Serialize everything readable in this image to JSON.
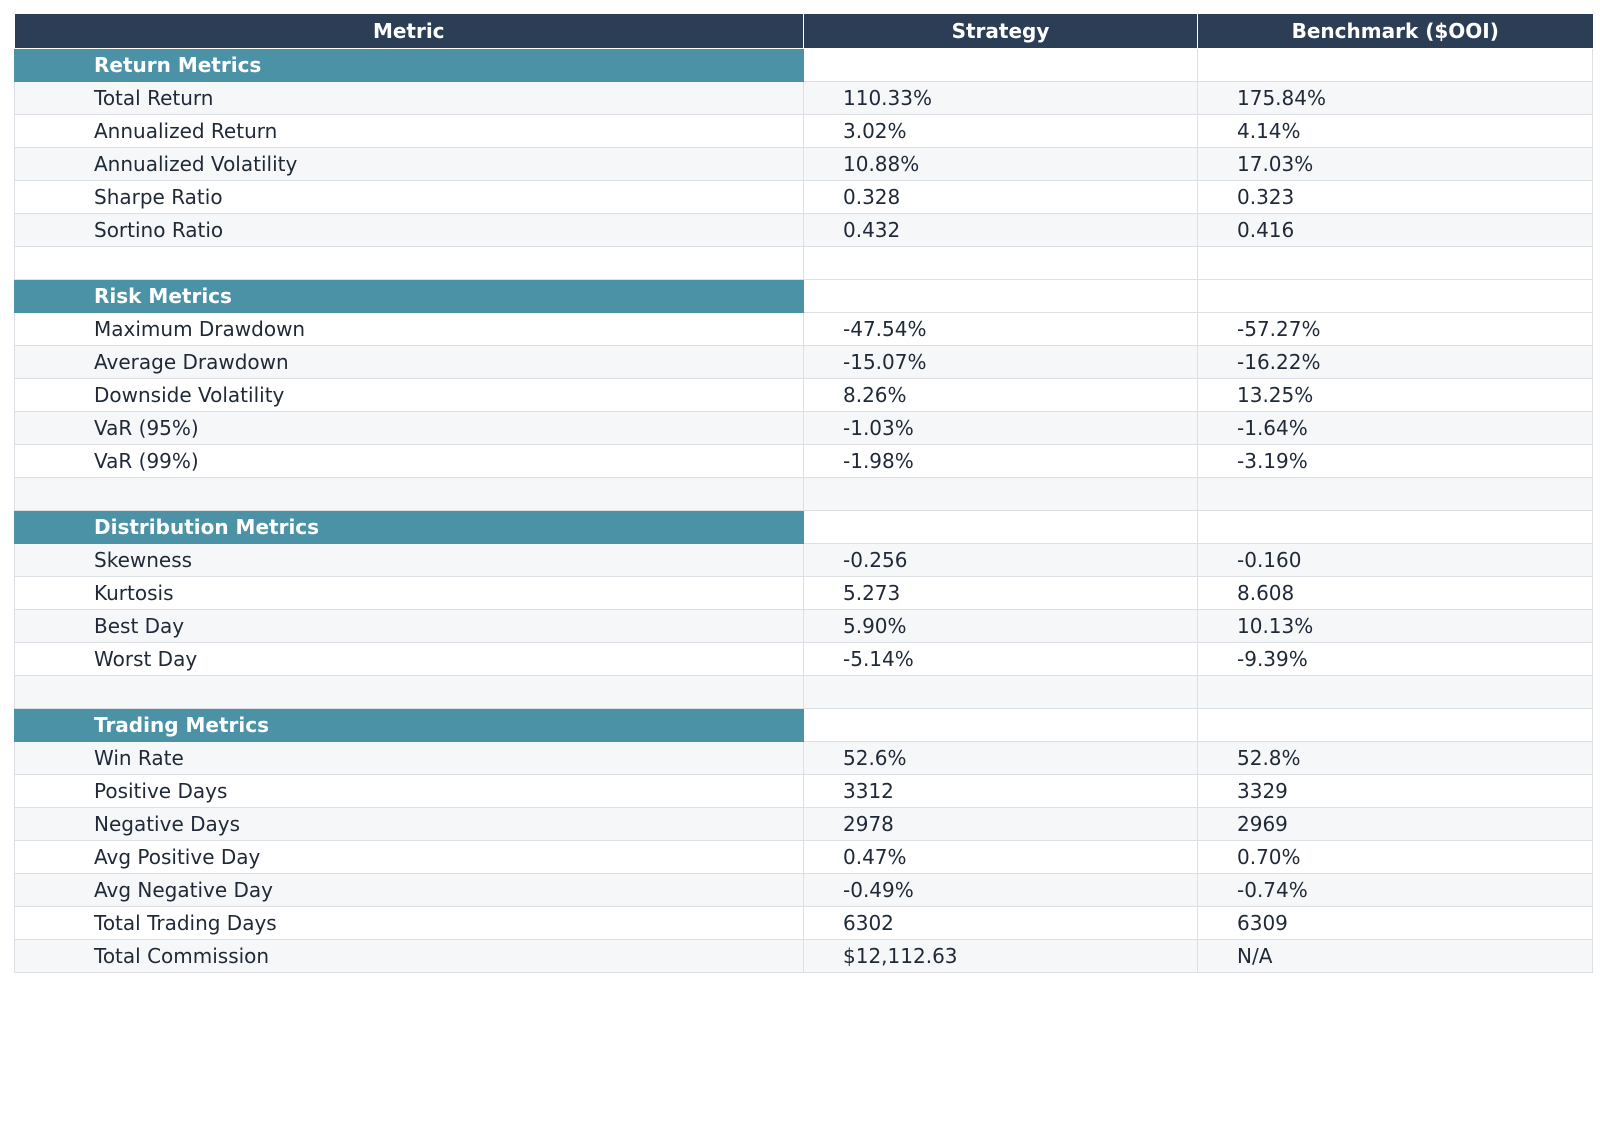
{
  "chart_data": {
    "type": "table",
    "columns": [
      "Metric",
      "Strategy",
      "Benchmark ($OOI)"
    ],
    "rows": [
      {
        "kind": "section",
        "label": "Return Metrics"
      },
      {
        "kind": "data",
        "metric": "Total Return",
        "strategy": "110.33%",
        "benchmark": "175.84%"
      },
      {
        "kind": "data",
        "metric": "Annualized Return",
        "strategy": "3.02%",
        "benchmark": "4.14%"
      },
      {
        "kind": "data",
        "metric": "Annualized Volatility",
        "strategy": "10.88%",
        "benchmark": "17.03%"
      },
      {
        "kind": "data",
        "metric": "Sharpe Ratio",
        "strategy": "0.328",
        "benchmark": "0.323"
      },
      {
        "kind": "data",
        "metric": "Sortino Ratio",
        "strategy": "0.432",
        "benchmark": "0.416"
      },
      {
        "kind": "spacer"
      },
      {
        "kind": "section",
        "label": "Risk Metrics"
      },
      {
        "kind": "data",
        "metric": "Maximum Drawdown",
        "strategy": "-47.54%",
        "benchmark": "-57.27%"
      },
      {
        "kind": "data",
        "metric": "Average Drawdown",
        "strategy": "-15.07%",
        "benchmark": "-16.22%"
      },
      {
        "kind": "data",
        "metric": "Downside Volatility",
        "strategy": "8.26%",
        "benchmark": "13.25%"
      },
      {
        "kind": "data",
        "metric": "VaR (95%)",
        "strategy": "-1.03%",
        "benchmark": "-1.64%"
      },
      {
        "kind": "data",
        "metric": "VaR (99%)",
        "strategy": "-1.98%",
        "benchmark": "-3.19%"
      },
      {
        "kind": "spacer"
      },
      {
        "kind": "section",
        "label": "Distribution Metrics"
      },
      {
        "kind": "data",
        "metric": "Skewness",
        "strategy": "-0.256",
        "benchmark": "-0.160"
      },
      {
        "kind": "data",
        "metric": "Kurtosis",
        "strategy": "5.273",
        "benchmark": "8.608"
      },
      {
        "kind": "data",
        "metric": "Best Day",
        "strategy": "5.90%",
        "benchmark": "10.13%"
      },
      {
        "kind": "data",
        "metric": "Worst Day",
        "strategy": "-5.14%",
        "benchmark": "-9.39%"
      },
      {
        "kind": "spacer"
      },
      {
        "kind": "section",
        "label": "Trading Metrics"
      },
      {
        "kind": "data",
        "metric": "Win Rate",
        "strategy": "52.6%",
        "benchmark": "52.8%"
      },
      {
        "kind": "data",
        "metric": "Positive Days",
        "strategy": "3312",
        "benchmark": "3329"
      },
      {
        "kind": "data",
        "metric": "Negative Days",
        "strategy": "2978",
        "benchmark": "2969"
      },
      {
        "kind": "data",
        "metric": "Avg Positive Day",
        "strategy": "0.47%",
        "benchmark": "0.70%"
      },
      {
        "kind": "data",
        "metric": "Avg Negative Day",
        "strategy": "-0.49%",
        "benchmark": "-0.74%"
      },
      {
        "kind": "data",
        "metric": "Total Trading Days",
        "strategy": "6302",
        "benchmark": "6309"
      },
      {
        "kind": "data",
        "metric": "Total Commission",
        "strategy": "$12,112.63",
        "benchmark": "N/A"
      }
    ]
  },
  "colors": {
    "header_bg": "#2c3e56",
    "section_bg": "#4b92a6",
    "stripe_bg": "#f6f7f9",
    "border": "#dcdfe4",
    "text": "#1f2937"
  }
}
